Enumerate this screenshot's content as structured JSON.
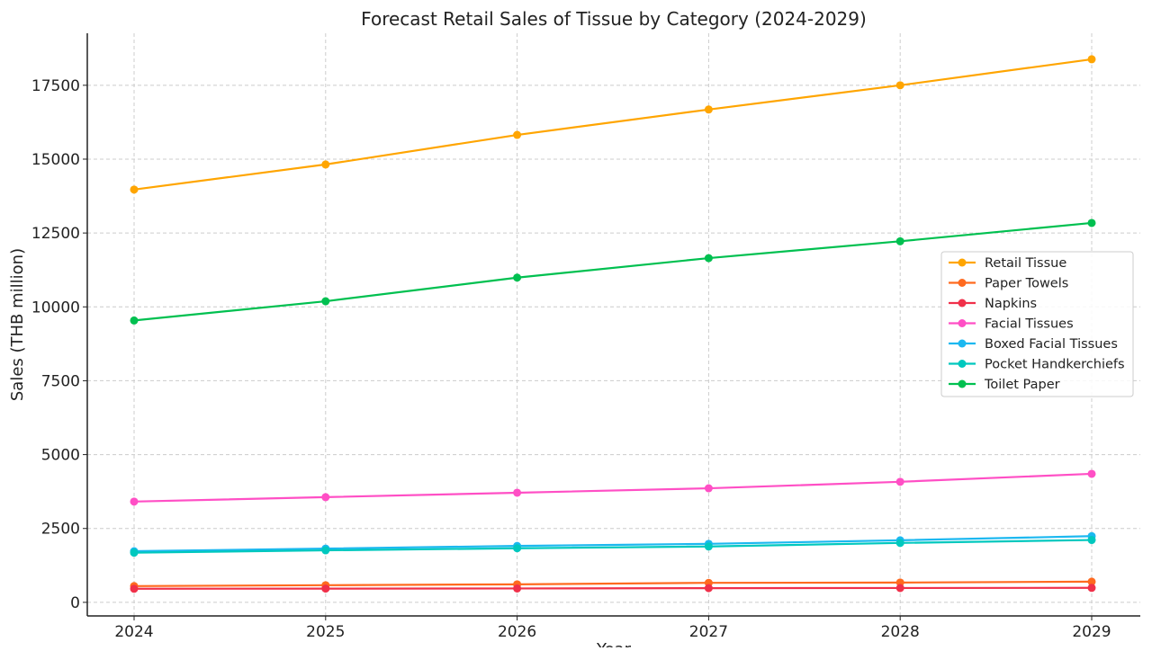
{
  "chart_data": {
    "type": "line",
    "title": "Forecast Retail Sales of Tissue by Category (2024-2029)",
    "xlabel": "Year",
    "ylabel": "Sales (THB million)",
    "x": [
      2024,
      2025,
      2026,
      2027,
      2028,
      2029
    ],
    "xticks": [
      "2024",
      "2025",
      "2026",
      "2027",
      "2028",
      "2029"
    ],
    "yticks": [
      0,
      2500,
      5000,
      7500,
      10000,
      12500,
      15000,
      17500
    ],
    "ylim": [
      -460,
      19260
    ],
    "grid": true,
    "legend_position": "center-right",
    "series": [
      {
        "name": "Retail Tissue",
        "color": "#FFA500",
        "values": [
          13970,
          14820,
          15820,
          16680,
          17500,
          18380
        ]
      },
      {
        "name": "Paper Towels",
        "color": "#FF6A1F",
        "values": [
          550,
          580,
          610,
          660,
          670,
          700
        ]
      },
      {
        "name": "Napkins",
        "color": "#F0304A",
        "values": [
          460,
          465,
          470,
          480,
          485,
          490
        ]
      },
      {
        "name": "Facial Tissues",
        "color": "#FF4FC5",
        "values": [
          3410,
          3560,
          3710,
          3860,
          4080,
          4350
        ]
      },
      {
        "name": "Boxed Facial Tissues",
        "color": "#1CB8F0",
        "values": [
          1730,
          1820,
          1910,
          1980,
          2100,
          2240
        ]
      },
      {
        "name": "Pocket Handkerchiefs",
        "color": "#00C8BE",
        "values": [
          1680,
          1760,
          1830,
          1890,
          2010,
          2110
        ]
      },
      {
        "name": "Toilet Paper",
        "color": "#00C050",
        "values": [
          9540,
          10190,
          10990,
          11650,
          12220,
          12840
        ]
      }
    ]
  }
}
